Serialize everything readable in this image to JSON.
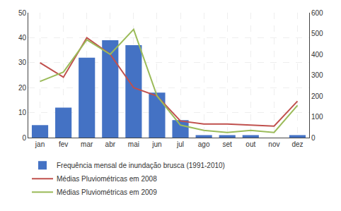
{
  "chart_data": {
    "type": "bar",
    "categories": [
      "jan",
      "fev",
      "mar",
      "abr",
      "mai",
      "jun",
      "jul",
      "ago",
      "set",
      "out",
      "nov",
      "dez"
    ],
    "series": [
      {
        "name": "Frequência mensal de inundação brusca (1991-2010)",
        "type": "bar",
        "color": "#4472C4",
        "values": [
          5,
          12,
          32,
          39,
          37,
          18,
          7,
          1,
          1,
          1,
          0,
          1
        ]
      },
      {
        "name": "Médias Pluviométricas em 2008",
        "type": "line",
        "color": "#C0504D",
        "axis": "y2",
        "values": [
          360,
          290,
          480,
          400,
          240,
          200,
          80,
          65,
          65,
          60,
          55,
          175
        ]
      },
      {
        "name": "Médias Pluviométricas em 2009",
        "type": "line",
        "color": "#9BBB59",
        "axis": "y2",
        "values": [
          270,
          315,
          470,
          400,
          520,
          200,
          60,
          35,
          25,
          35,
          25,
          155
        ]
      }
    ],
    "ylim": [
      0,
      50
    ],
    "yticks": [
      0,
      10,
      20,
      30,
      40,
      50
    ],
    "y2lim": [
      0,
      600
    ],
    "y2ticks": [
      0,
      100,
      200,
      300,
      400,
      500,
      600
    ],
    "grid": true,
    "legend": "bottom"
  }
}
